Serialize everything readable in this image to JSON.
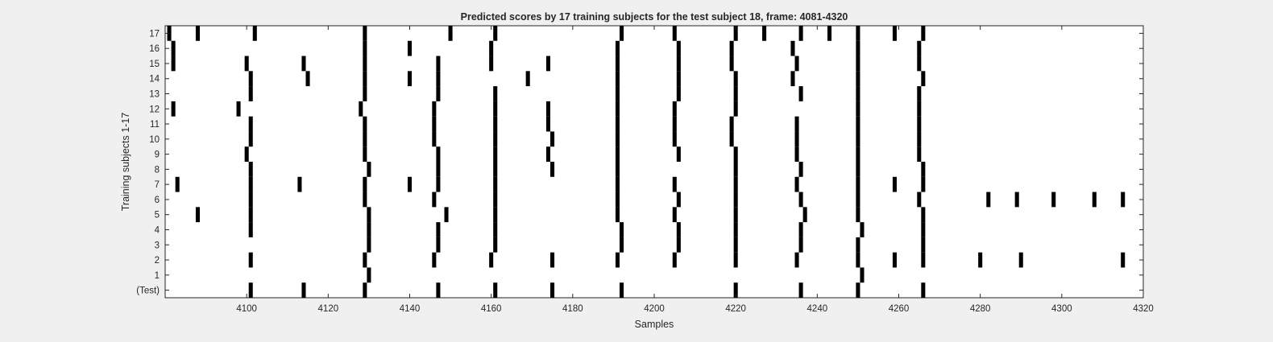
{
  "chart_data": {
    "type": "event-raster",
    "title": "Predicted scores by 17 training subjects for the test subject 18, frame: 4081-4320",
    "xlabel": "Samples",
    "ylabel": "Training subjects 1-17",
    "xlim": [
      4080,
      4320
    ],
    "xticks": [
      4100,
      4120,
      4140,
      4160,
      4180,
      4200,
      4220,
      4240,
      4260,
      4280,
      4300,
      4320
    ],
    "yticks": [
      {
        "value": 0,
        "label": "(Test)"
      },
      {
        "value": 1,
        "label": "1"
      },
      {
        "value": 2,
        "label": "2"
      },
      {
        "value": 3,
        "label": "3"
      },
      {
        "value": 4,
        "label": "4"
      },
      {
        "value": 5,
        "label": "5"
      },
      {
        "value": 6,
        "label": "6"
      },
      {
        "value": 7,
        "label": "7"
      },
      {
        "value": 8,
        "label": "8"
      },
      {
        "value": 9,
        "label": "9"
      },
      {
        "value": 10,
        "label": "10"
      },
      {
        "value": 11,
        "label": "11"
      },
      {
        "value": 12,
        "label": "12"
      },
      {
        "value": 13,
        "label": "13"
      },
      {
        "value": 14,
        "label": "14"
      },
      {
        "value": 15,
        "label": "15"
      },
      {
        "value": 16,
        "label": "16"
      },
      {
        "value": 17,
        "label": "17"
      }
    ],
    "ylim": [
      -0.5,
      17.5
    ],
    "grid": false,
    "mark_color": "#000000",
    "rows": [
      {
        "label": "(Test)",
        "events": [
          4101,
          4114,
          4129,
          4147,
          4161,
          4175,
          4192,
          4220,
          4236,
          4250,
          4266
        ]
      },
      {
        "label": "1",
        "events": [
          4130,
          4251
        ]
      },
      {
        "label": "2",
        "events": [
          4101,
          4129,
          4146,
          4160,
          4175,
          4191,
          4205,
          4220,
          4235,
          4250,
          4259,
          4266,
          4280,
          4290,
          4315
        ]
      },
      {
        "label": "3",
        "events": [
          4130,
          4147,
          4161,
          4192,
          4206,
          4220,
          4236,
          4250,
          4266
        ]
      },
      {
        "label": "4",
        "events": [
          4101,
          4130,
          4147,
          4161,
          4192,
          4206,
          4220,
          4236,
          4251,
          4266
        ]
      },
      {
        "label": "5",
        "events": [
          4088,
          4101,
          4130,
          4149,
          4161,
          4191,
          4205,
          4220,
          4237,
          4250,
          4266
        ]
      },
      {
        "label": "6",
        "events": [
          4101,
          4129,
          4146,
          4161,
          4191,
          4206,
          4220,
          4236,
          4250,
          4265,
          4282,
          4289,
          4298,
          4308,
          4315
        ]
      },
      {
        "label": "7",
        "events": [
          4083,
          4101,
          4113,
          4129,
          4140,
          4147,
          4161,
          4191,
          4205,
          4220,
          4235,
          4250,
          4259,
          4266
        ]
      },
      {
        "label": "8",
        "events": [
          4101,
          4130,
          4147,
          4161,
          4175,
          4191,
          4220,
          4236,
          4250,
          4266
        ]
      },
      {
        "label": "9",
        "events": [
          4100,
          4129,
          4147,
          4161,
          4174,
          4191,
          4206,
          4220,
          4235,
          4250,
          4265
        ]
      },
      {
        "label": "10",
        "events": [
          4101,
          4129,
          4146,
          4161,
          4175,
          4191,
          4205,
          4219,
          4235,
          4250,
          4265
        ]
      },
      {
        "label": "11",
        "events": [
          4101,
          4129,
          4146,
          4161,
          4174,
          4191,
          4205,
          4219,
          4235,
          4250,
          4265
        ]
      },
      {
        "label": "12",
        "events": [
          4082,
          4098,
          4128,
          4146,
          4161,
          4174,
          4191,
          4205,
          4220,
          4250,
          4265
        ]
      },
      {
        "label": "13",
        "events": [
          4101,
          4129,
          4147,
          4161,
          4191,
          4206,
          4220,
          4236,
          4250,
          4265
        ]
      },
      {
        "label": "14",
        "events": [
          4101,
          4115,
          4129,
          4140,
          4147,
          4169,
          4191,
          4206,
          4220,
          4234,
          4250,
          4266
        ]
      },
      {
        "label": "15",
        "events": [
          4082,
          4100,
          4114,
          4129,
          4147,
          4160,
          4174,
          4191,
          4206,
          4219,
          4235,
          4250,
          4265
        ]
      },
      {
        "label": "16",
        "events": [
          4082,
          4129,
          4140,
          4160,
          4191,
          4206,
          4219,
          4234,
          4250,
          4265
        ]
      },
      {
        "label": "17",
        "events": [
          4081,
          4088,
          4102,
          4129,
          4150,
          4161,
          4192,
          4205,
          4220,
          4227,
          4236,
          4243,
          4250,
          4259,
          4266
        ]
      }
    ]
  }
}
